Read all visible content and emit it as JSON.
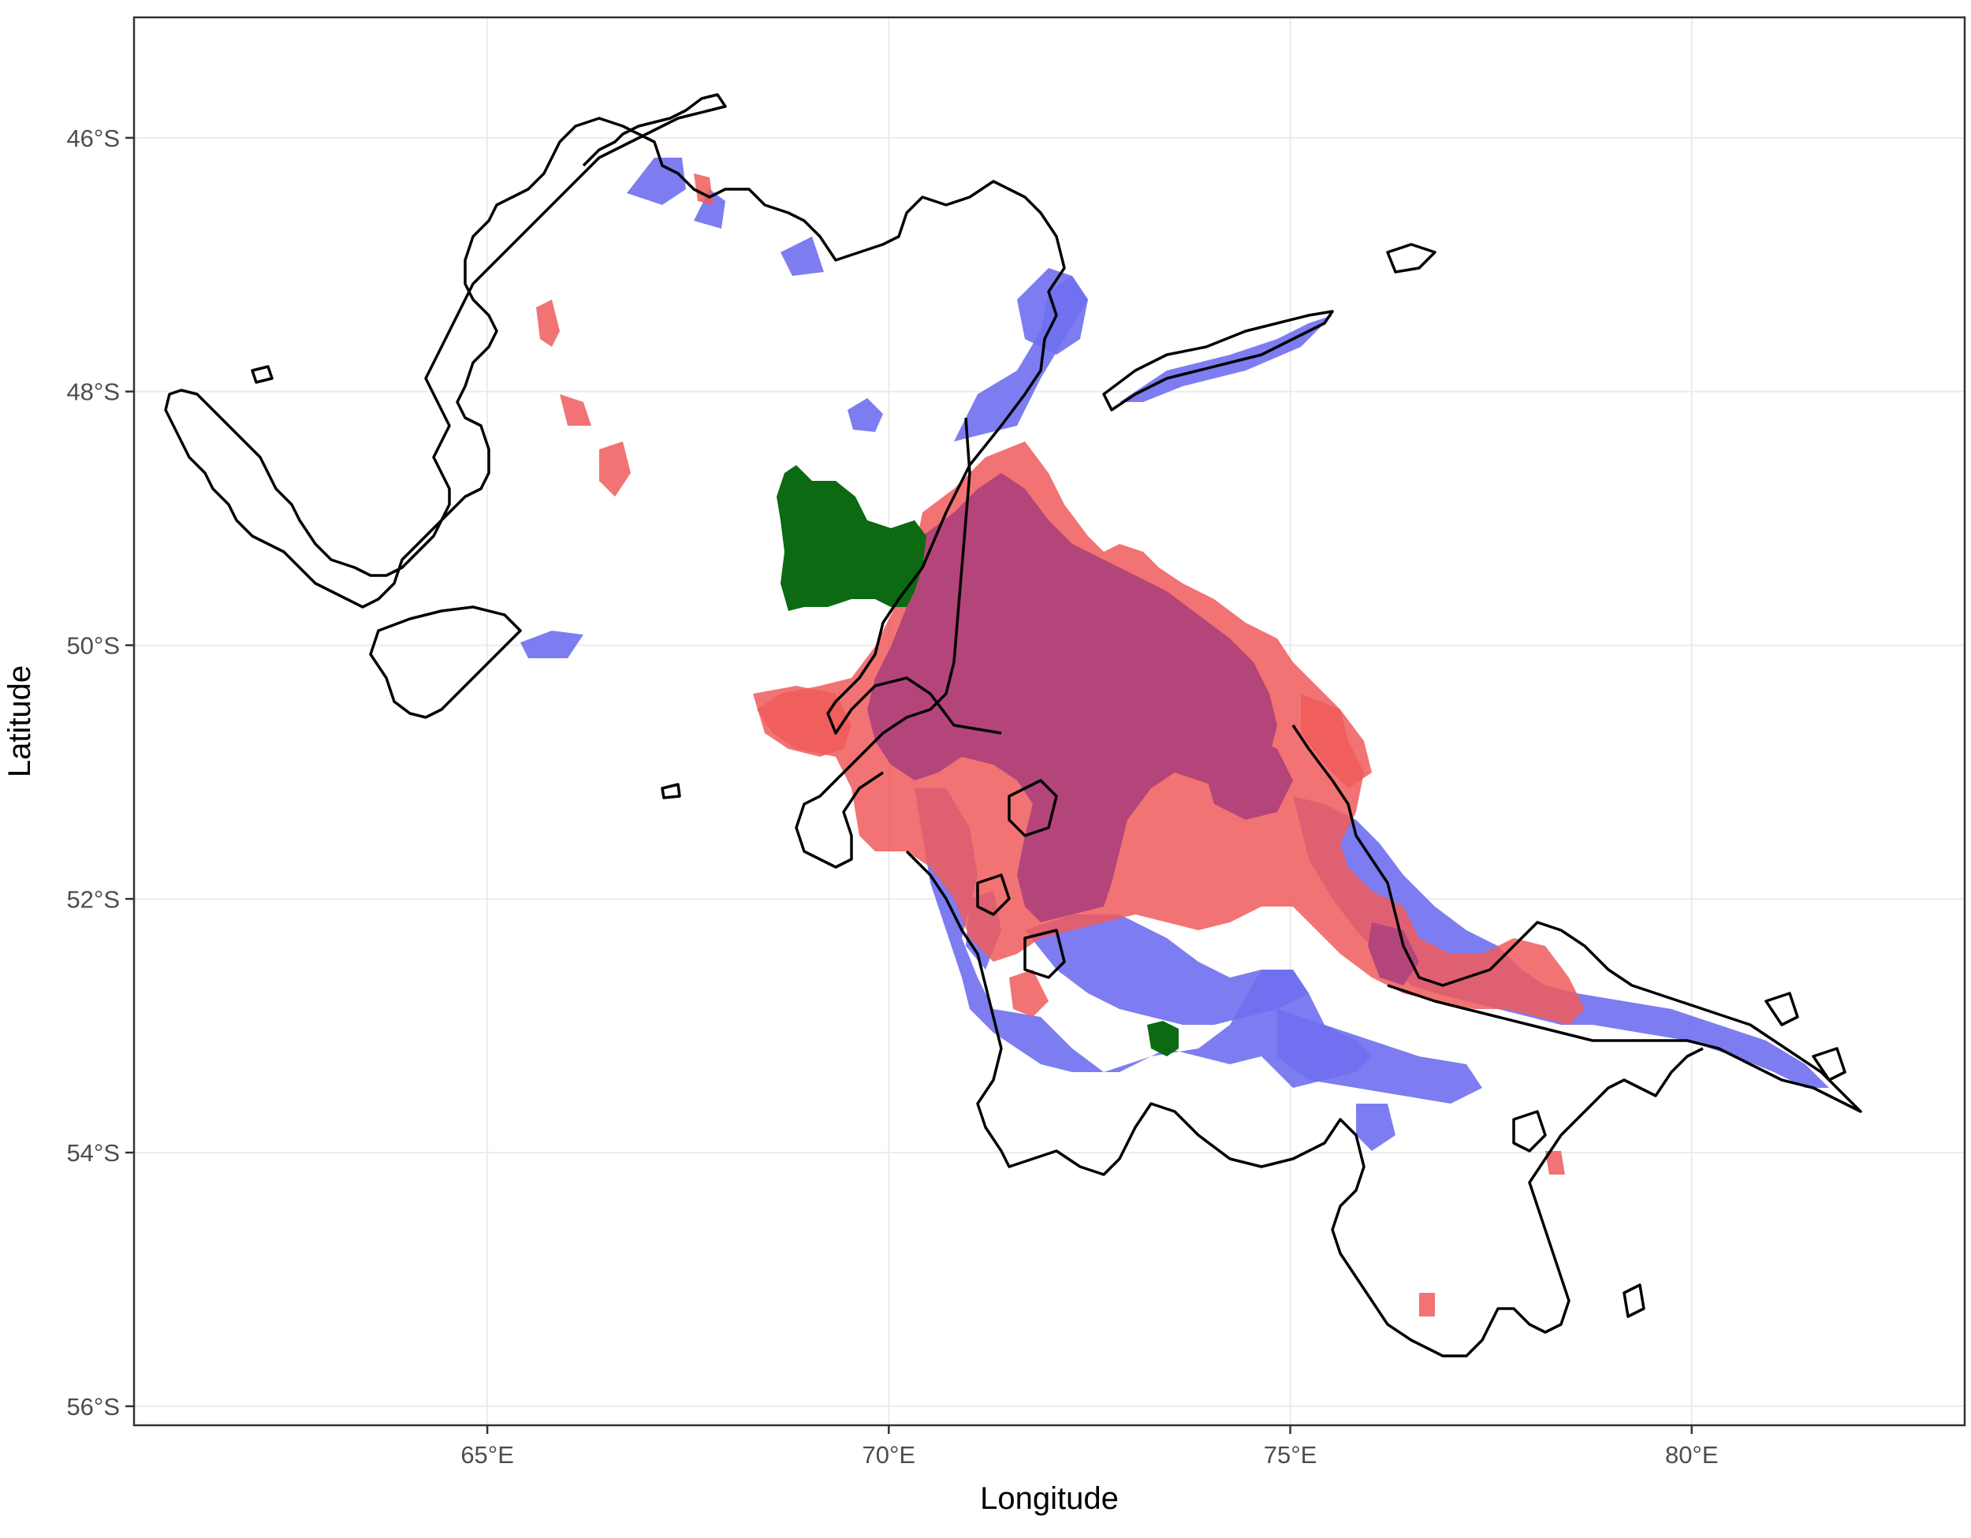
{
  "map": {
    "xlabel": "Longitude",
    "ylabel": "Latitude",
    "x_ticks": [
      {
        "value": 65,
        "label": "65°E"
      },
      {
        "value": 70,
        "label": "70°E"
      },
      {
        "value": 75,
        "label": "75°E"
      },
      {
        "value": 80,
        "label": "80°E"
      }
    ],
    "y_ticks": [
      {
        "value": -46,
        "label": "46°S"
      },
      {
        "value": -48,
        "label": "48°S"
      },
      {
        "value": -50,
        "label": "50°S"
      },
      {
        "value": -52,
        "label": "52°S"
      },
      {
        "value": -54,
        "label": "54°S"
      },
      {
        "value": -56,
        "label": "56°S"
      }
    ],
    "xlim": [
      60.6,
      83.4
    ],
    "ylim": [
      -56.15,
      -45.05
    ],
    "colors": {
      "blue_layer": "#6f6ff0",
      "red_layer": "#f05a5a",
      "overlap_layer": "#b4457a",
      "green_layer": "#0b6a12",
      "contour": "#000000"
    },
    "grid": true,
    "legend": "none"
  }
}
